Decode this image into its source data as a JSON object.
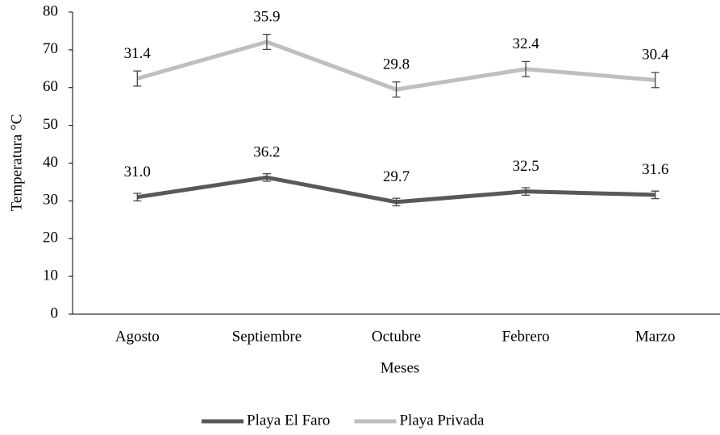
{
  "chart_data": {
    "type": "line",
    "stacked": true,
    "x_label": "Meses",
    "y_label": "Temperatura °C",
    "categories": [
      "Agosto",
      "Septiembre",
      "Octubre",
      "Febrero",
      "Marzo"
    ],
    "series": [
      {
        "name": "Playa El Faro",
        "color": "#595959",
        "values": [
          31.0,
          36.2,
          29.7,
          32.5,
          31.6
        ],
        "value_labels": [
          "31.0",
          "36.2",
          "29.7",
          "32.5",
          "31.6"
        ],
        "errors": [
          1,
          1,
          1,
          1,
          1
        ]
      },
      {
        "name": "Playa Privada",
        "color": "#bfbfbf",
        "values": [
          31.4,
          35.9,
          29.8,
          32.4,
          30.4
        ],
        "value_labels": [
          "31.4",
          "35.9",
          "29.8",
          "32.4",
          "30.4"
        ],
        "errors": [
          2,
          2,
          2,
          2,
          2
        ]
      }
    ],
    "ylim": [
      0,
      80
    ],
    "yticks": [
      0,
      10,
      20,
      30,
      40,
      50,
      60,
      70,
      80
    ],
    "grid": false,
    "legend": "bottom"
  }
}
